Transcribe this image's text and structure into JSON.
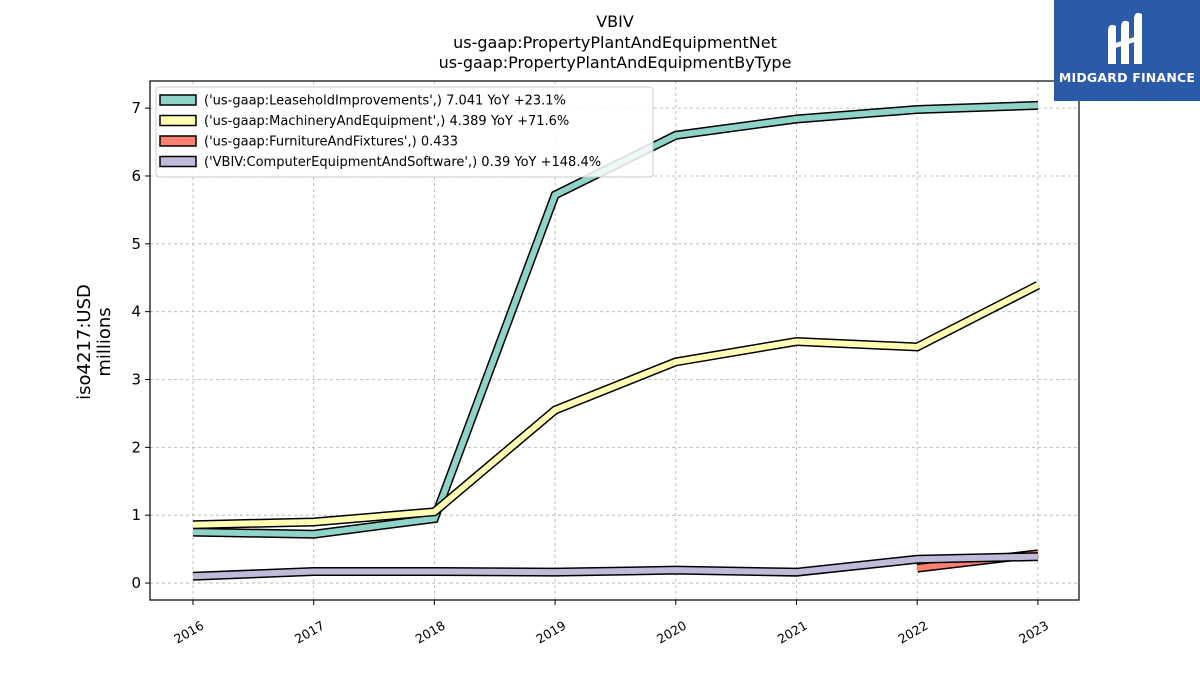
{
  "chart_data": {
    "type": "line",
    "title_lines": [
      "VBIV",
      "us-gaap:PropertyPlantAndEquipmentNet",
      "us-gaap:PropertyPlantAndEquipmentByType"
    ],
    "ylabel_lines": [
      "iso4217:USD",
      "millions"
    ],
    "x": [
      "2016",
      "2017",
      "2018",
      "2019",
      "2020",
      "2021",
      "2022",
      "2023"
    ],
    "ylim": [
      -0.25,
      7.4
    ],
    "yticks": [
      0,
      1,
      2,
      3,
      4,
      5,
      6,
      7
    ],
    "grid": true,
    "legend_position": "top-left",
    "series": [
      {
        "name": "('us-gaap:LeaseholdImprovements',) 7.041 YoY +23.1%",
        "color": "#8dd3c7",
        "values": [
          0.75,
          0.72,
          0.95,
          5.72,
          6.6,
          6.84,
          6.98,
          7.04
        ]
      },
      {
        "name": "('us-gaap:MachineryAndEquipment',) 4.389 YoY +71.6%",
        "color": "#ffffb3",
        "values": [
          0.86,
          0.9,
          1.05,
          2.55,
          3.26,
          3.56,
          3.48,
          4.39
        ]
      },
      {
        "name": "('us-gaap:FurnitureAndFixtures',) 0.433",
        "color": "#fb8072",
        "values": [
          null,
          null,
          null,
          null,
          null,
          null,
          0.22,
          0.43
        ]
      },
      {
        "name": "('VBIV:ComputerEquipmentAndSoftware',) 0.39 YoY +148.4%",
        "color": "#bebada",
        "values": [
          0.1,
          0.17,
          0.17,
          0.16,
          0.19,
          0.16,
          0.35,
          0.39
        ]
      }
    ]
  },
  "logo": {
    "brand": "MIDGARD FINANCE"
  }
}
